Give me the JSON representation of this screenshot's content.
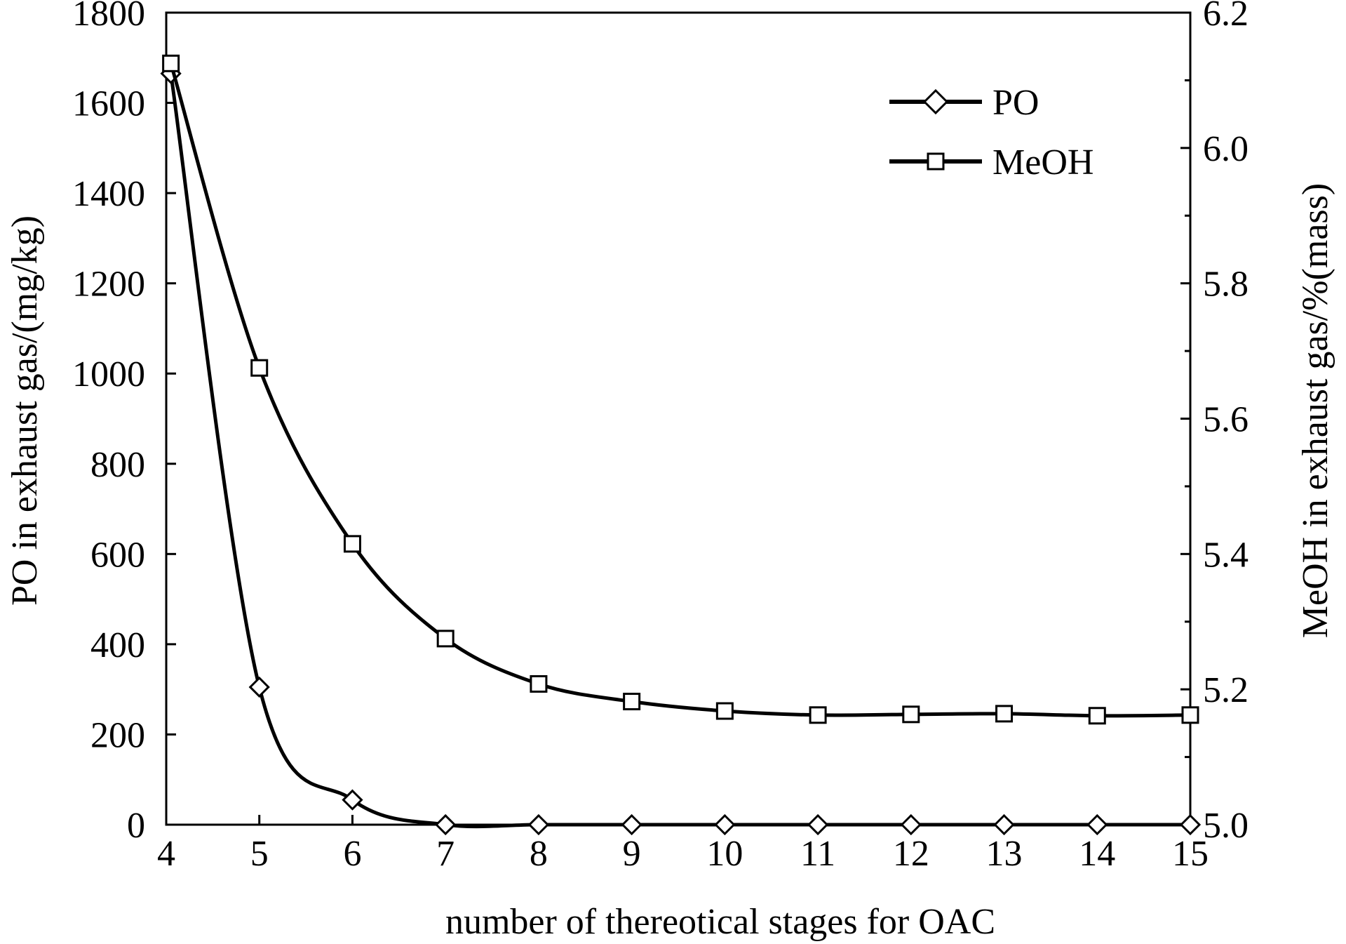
{
  "chart_data": {
    "type": "line",
    "title": "",
    "xlabel": "number of thereotical stages for OAC",
    "ylabel_left": "PO  in exhaust gas/(mg/kg)",
    "ylabel_right": "MeOH  in exhaust gas/%(mass)",
    "xlim": [
      4,
      15
    ],
    "ylim_left": [
      0,
      1800
    ],
    "ylim_right": [
      5.0,
      6.2
    ],
    "x_ticks": [
      "4",
      "5",
      "6",
      "7",
      "8",
      "9",
      "10",
      "11",
      "12",
      "13",
      "14",
      "15"
    ],
    "y_ticks_left": [
      "0",
      "200",
      "400",
      "600",
      "800",
      "1000",
      "1200",
      "1400",
      "1600",
      "1800"
    ],
    "y_ticks_right": [
      "5.0",
      "5.2",
      "5.4",
      "5.6",
      "5.8",
      "6.0",
      "6.2"
    ],
    "grid": false,
    "legend_position": "top-right",
    "series": [
      {
        "name": "PO",
        "axis": "left",
        "marker": "diamond",
        "x": [
          4.05,
          5,
          6,
          7,
          8,
          9,
          10,
          11,
          12,
          13,
          14,
          15
        ],
        "values": [
          1665,
          305,
          55,
          0,
          0,
          0,
          0,
          0,
          0,
          0,
          0,
          0
        ]
      },
      {
        "name": "MeOH",
        "axis": "right",
        "marker": "square",
        "x": [
          4.05,
          5,
          6,
          7,
          8,
          9,
          10,
          11,
          12,
          13,
          14,
          15
        ],
        "values": [
          6.125,
          5.675,
          5.415,
          5.275,
          5.208,
          5.182,
          5.168,
          5.162,
          5.163,
          5.164,
          5.161,
          5.162
        ]
      }
    ]
  }
}
